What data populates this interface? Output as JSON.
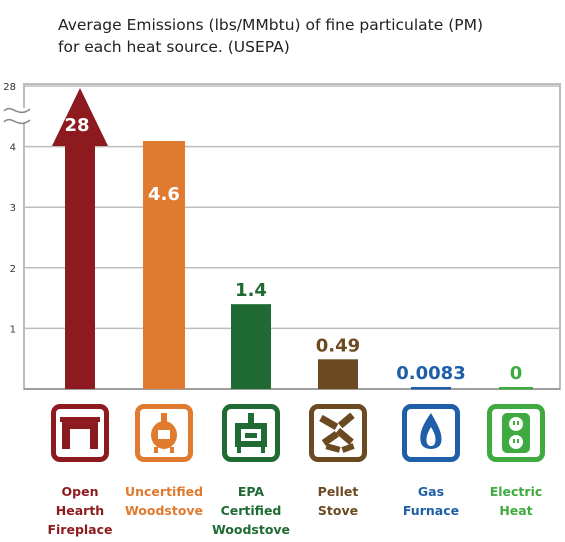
{
  "chart_data": {
    "type": "bar",
    "title_lines": [
      "Average Emissions (lbs/MMbtu) of fine particulate (PM)",
      "for each heat source.  (USEPA)"
    ],
    "categories": [
      "Open Hearth Fireplace",
      "Uncertified Woodstove",
      "EPA Certified Woodstove",
      "Pellet Stove",
      "Gas Furnace",
      "Electric Heat"
    ],
    "category_label_lines": [
      [
        "Open",
        "Hearth",
        "Fireplace"
      ],
      [
        "Uncertified",
        "Woodstove"
      ],
      [
        "EPA",
        "Certified",
        "Woodstove"
      ],
      [
        "Pellet",
        "Stove"
      ],
      [
        "Gas",
        "Furnace"
      ],
      [
        "Electric",
        "Heat"
      ]
    ],
    "values": [
      28,
      4.6,
      1.4,
      0.49,
      0.0083,
      0
    ],
    "data_labels": [
      "28",
      "4.6",
      "1.4",
      "0.49",
      "0.0083",
      "0"
    ],
    "colors": [
      "#8c1a1e",
      "#e07a2e",
      "#1f6b33",
      "#6b4a21",
      "#1f5ea8",
      "#3faa3f"
    ],
    "icons": [
      "fireplace-icon",
      "woodstove-icon",
      "epa-woodstove-icon",
      "pellets-icon",
      "gas-flame-icon",
      "electric-outlet-icon"
    ],
    "y_tick_labels": [
      "28",
      "4",
      "3",
      "2",
      "1"
    ],
    "y_ticks": [
      1,
      2,
      3,
      4
    ],
    "ylim": [
      0,
      4.2
    ],
    "axis_break": true,
    "grid": true
  }
}
